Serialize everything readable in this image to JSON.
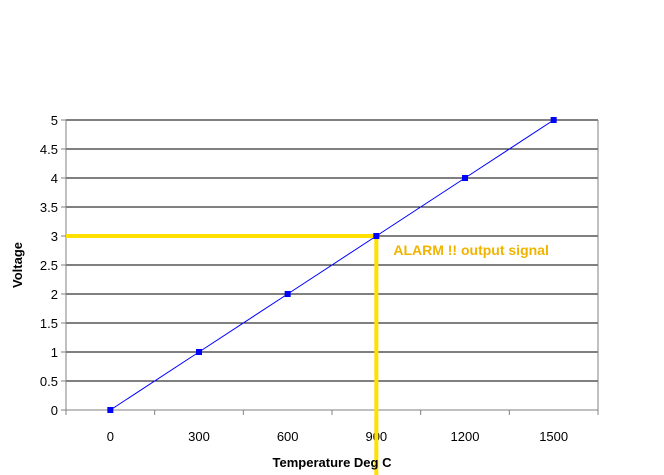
{
  "chart_data": {
    "type": "line",
    "title": "",
    "xlabel": "Temperature Deg C",
    "ylabel": "Voltage",
    "x": [
      0,
      300,
      600,
      900,
      1200,
      1500
    ],
    "series": [
      {
        "values": [
          0,
          1,
          2,
          3,
          4,
          5
        ]
      }
    ],
    "xlim": [
      -150,
      1650
    ],
    "ylim": [
      0,
      5
    ],
    "x_ticks": [
      0,
      300,
      600,
      900,
      1200,
      1500
    ],
    "y_ticks": [
      0,
      0.5,
      1,
      1.5,
      2,
      2.5,
      3,
      3.5,
      4,
      4.5,
      5
    ],
    "y_tick_labels": [
      "0",
      "0.5",
      "1",
      "1.5",
      "2",
      "2.5",
      "3",
      "3.5",
      "4",
      "4.5",
      "5"
    ],
    "x_tick_labels": [
      "0",
      "300",
      "600",
      "900",
      "1200",
      "1500"
    ],
    "grid": "horizontal major",
    "legend": "none",
    "annotation": {
      "text": "ALARM !!  output signal",
      "x": 900,
      "y": 3
    },
    "colors": {
      "line": "#0000ff",
      "marker": "#0000ff",
      "threshold": "#ffe000",
      "annotation_text": "#f0b400",
      "grid": "#000000"
    }
  }
}
